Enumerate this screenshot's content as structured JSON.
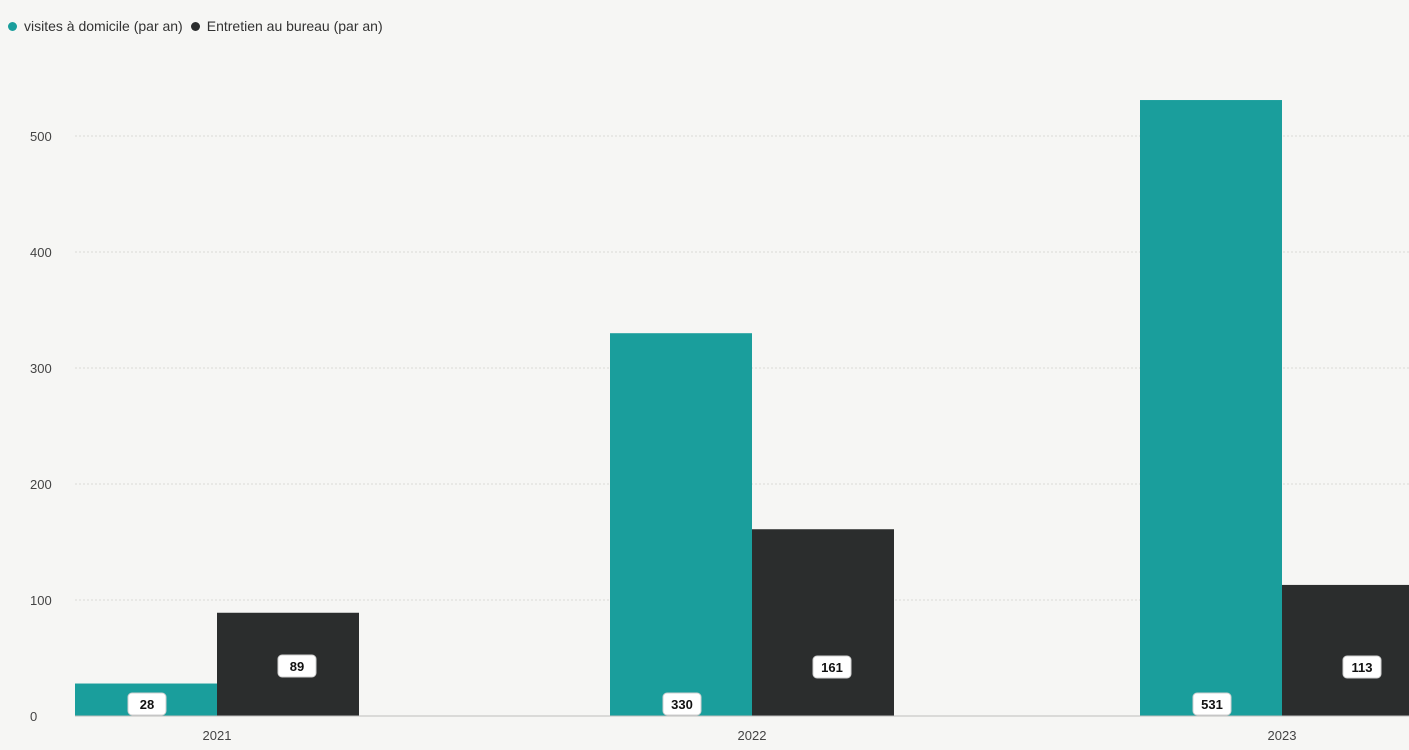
{
  "chart_data": {
    "type": "bar",
    "categories": [
      "2021",
      "2022",
      "2023"
    ],
    "series": [
      {
        "name": "visites à domicile (par an)",
        "values": [
          28,
          330,
          531
        ],
        "color": "#1a9e9c"
      },
      {
        "name": "Entretien au bureau (par an)",
        "values": [
          89,
          161,
          113
        ],
        "color": "#2b2d2d"
      }
    ],
    "yticks": [
      "0",
      "100",
      "200",
      "300",
      "400",
      "500"
    ],
    "ylim": [
      0,
      550
    ],
    "grid": true,
    "legend_position": "top-left",
    "data_labels": true
  }
}
